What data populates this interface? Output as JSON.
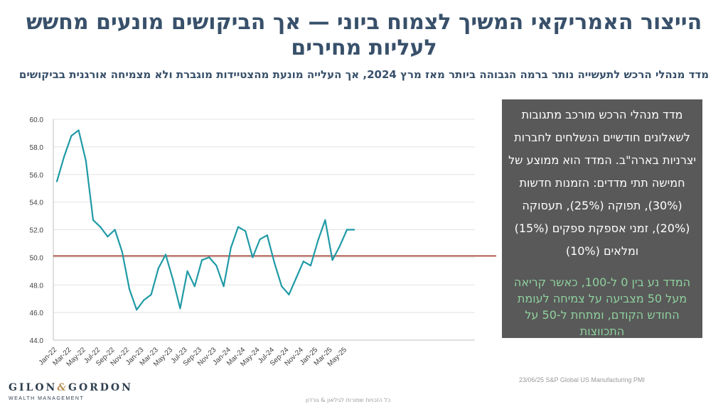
{
  "title": "הייצור האמריקאי המשיך לצמוח ביוני — אך הביקושים מונעים מחשש לעליות מחירים",
  "subtitle": "מדד מנהלי הרכש לתעשייה נותר ברמה הגבוהה ביותר מאז מרץ 2024, אך העלייה מונעת מהצטיידות מוגברת ולא מצמיחה אורגנית בביקושים",
  "info_box": {
    "main_text": "מדד מנהלי הרכש מורכב מתגובות לשאלונים חודשיים הנשלחים לחברות יצרניות בארה\"ב. המדד הוא ממוצע של חמישה תתי מדדים: הזמנות חדשות (30%), תפוקה (25%), תעסוקה (20%), זמני אספקת ספקים (15%) ומלאים (10%)",
    "green_text": "המדד נע בין 0 ל-100, כאשר קריאה מעל 50 מצביעה על צמיחה לעומת החודש הקודם, ומתחת ל-50 על התכווצות"
  },
  "source": "23/06/25 S&P Global US Manufacturing PMI",
  "footer": "כל הזכויות שמורות לגילאון & גורדון",
  "logo": {
    "name_left": "GILON",
    "ampersand": "&",
    "name_right": "GORDON",
    "tagline": "WEALTH MANAGEMENT"
  },
  "colors": {
    "title": "#38506a",
    "line": "#1f9aa5",
    "reference_line": "#a0392a",
    "info_bg": "#595959",
    "info_green": "#8fd19e"
  },
  "chart_data": {
    "type": "line",
    "title": "",
    "xlabel": "",
    "ylabel": "",
    "ylim": [
      44.0,
      60.0
    ],
    "y_ticks": [
      "44.0",
      "46.0",
      "48.0",
      "50.0",
      "52.0",
      "54.0",
      "56.0",
      "58.0",
      "60.0"
    ],
    "x_tick_labels": [
      "Jan-22",
      "Mar-22",
      "May-22",
      "Jul-22",
      "Sep-22",
      "Nov-22",
      "Jan-23",
      "Mar-23",
      "May-23",
      "Jul-23",
      "Sep-23",
      "Nov-23",
      "Jan-24",
      "Mar-24",
      "May-24",
      "Jul-24",
      "Sep-24",
      "Nov-24",
      "Jan-25",
      "Mar-25",
      "May-25"
    ],
    "reference_line": 50.1,
    "grid": true,
    "x": [
      "Jan-22",
      "Feb-22",
      "Mar-22",
      "Apr-22",
      "May-22",
      "Jun-22",
      "Jul-22",
      "Aug-22",
      "Sep-22",
      "Oct-22",
      "Nov-22",
      "Dec-22",
      "Jan-23",
      "Feb-23",
      "Mar-23",
      "Apr-23",
      "May-23",
      "Jun-23",
      "Jul-23",
      "Aug-23",
      "Sep-23",
      "Oct-23",
      "Nov-23",
      "Dec-23",
      "Jan-24",
      "Feb-24",
      "Mar-24",
      "Apr-24",
      "May-24",
      "Jun-24",
      "Jul-24",
      "Aug-24",
      "Sep-24",
      "Oct-24",
      "Nov-24",
      "Dec-24",
      "Jan-25",
      "Feb-25",
      "Mar-25",
      "Apr-25",
      "May-25",
      "Jun-25"
    ],
    "series": [
      {
        "values": [
          55.5,
          57.3,
          58.8,
          59.2,
          57.0,
          52.7,
          52.2,
          51.5,
          52.0,
          50.4,
          47.7,
          46.2,
          46.9,
          47.3,
          49.2,
          50.2,
          48.4,
          46.3,
          49.0,
          47.9,
          49.8,
          50.0,
          49.4,
          47.9,
          50.7,
          52.2,
          51.9,
          50.0,
          51.3,
          51.6,
          49.6,
          47.9,
          47.3,
          48.5,
          49.7,
          49.4,
          51.2,
          52.7,
          49.8,
          50.8,
          52.0,
          52.0
        ]
      }
    ]
  }
}
